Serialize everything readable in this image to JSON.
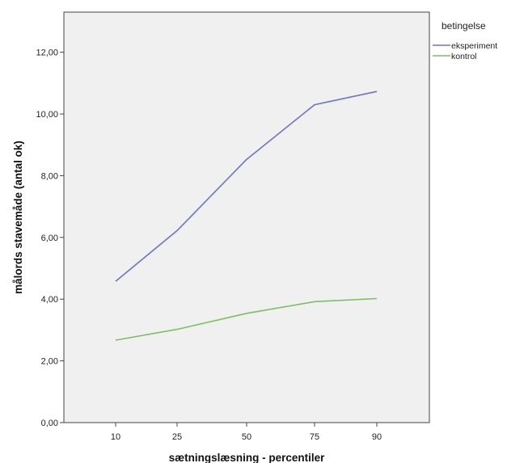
{
  "chart_data": {
    "type": "line",
    "categories": [
      "10",
      "25",
      "50",
      "75",
      "90"
    ],
    "series": [
      {
        "name": "eksperiment",
        "color": "#6a74c9",
        "values": [
          4.58,
          6.22,
          8.53,
          10.3,
          10.73
        ]
      },
      {
        "name": "kontrol",
        "color": "#7dbf63",
        "values": [
          2.67,
          3.02,
          3.54,
          3.92,
          4.02
        ]
      }
    ],
    "xlabel": "sætningslæsning - percentiler",
    "ylabel": "målords stavemåde (antal ok)",
    "ylim": [
      0,
      13.3
    ],
    "yticks": [
      "0,00",
      "2,00",
      "4,00",
      "6,00",
      "8,00",
      "10,00",
      "12,00"
    ],
    "grid": false,
    "background": "#f0f0f0",
    "legend": {
      "title": "betingelse",
      "position": "top-right, outside plot"
    }
  }
}
